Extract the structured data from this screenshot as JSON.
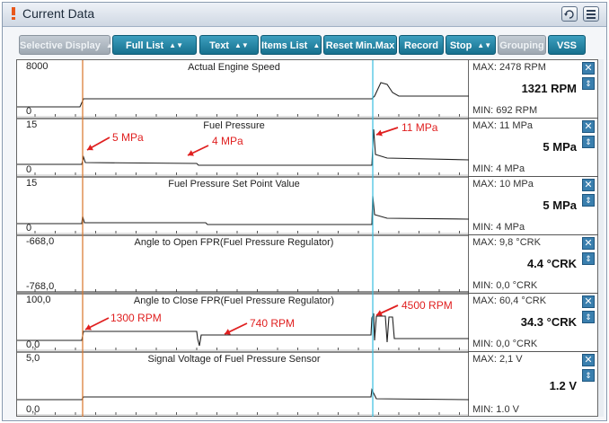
{
  "window": {
    "title": "Current Data"
  },
  "toolbar": {
    "buttons": [
      {
        "label": "Selective Display",
        "dropdown": true,
        "enabled": false
      },
      {
        "label": "Full List",
        "dropdown": true,
        "enabled": true
      },
      {
        "label": "Text",
        "dropdown": true,
        "enabled": true
      },
      {
        "label": "Items List",
        "dropdown": true,
        "enabled": true
      },
      {
        "label": "Reset Min.Max",
        "dropdown": false,
        "enabled": true
      },
      {
        "label": "Record",
        "dropdown": false,
        "enabled": true
      },
      {
        "label": "Stop",
        "dropdown": true,
        "enabled": true
      },
      {
        "label": "Grouping",
        "dropdown": false,
        "enabled": false
      },
      {
        "label": "VSS",
        "dropdown": false,
        "enabled": true
      }
    ]
  },
  "colors": {
    "accent": "#16708e",
    "annotation": "#e02020",
    "cursor_orange": "#d8742a",
    "cursor_cyan": "#39bfe0"
  },
  "panels": [
    {
      "title": "Actual Engine Speed",
      "ymax": "8000",
      "ymin": "0",
      "stat_max": "MAX: 2478 RPM",
      "stat_cur": "1321 RPM",
      "stat_min": "MIN: 692 RPM",
      "annotations": []
    },
    {
      "title": "Fuel Pressure",
      "ymax": "15",
      "ymin": "0",
      "stat_max": "MAX: 11 MPa",
      "stat_cur": "5 MPa",
      "stat_min": "MIN: 4 MPa",
      "annotations": [
        "5 MPa",
        "4 MPa",
        "11 MPa"
      ]
    },
    {
      "title": "Fuel Pressure Set Point Value",
      "ymax": "15",
      "ymin": "0",
      "stat_max": "MAX: 10 MPa",
      "stat_cur": "5 MPa",
      "stat_min": "MIN: 4 MPa",
      "annotations": []
    },
    {
      "title": "Angle to Open FPR(Fuel Pressure Regulator)",
      "ymax": "-668,0",
      "ymin": "-768,0",
      "stat_max": "MAX: 9,8 °CRK",
      "stat_cur": "4.4 °CRK",
      "stat_min": "MIN: 0,0 °CRK",
      "annotations": []
    },
    {
      "title": "Angle to Close FPR(Fuel Pressure Regulator)",
      "ymax": "100,0",
      "ymin": "0,0",
      "stat_max": "MAX: 60,4 °CRK",
      "stat_cur": "34.3 °CRK",
      "stat_min": "MIN: 0,0 °CRK",
      "annotations": [
        "1300 RPM",
        "740 RPM",
        "4500 RPM"
      ]
    },
    {
      "title": "Signal Voltage of Fuel Pressure Sensor",
      "ymax": "5,0",
      "ymin": "0,0",
      "stat_max": "MAX: 2,1 V",
      "stat_cur": "1.2 V",
      "stat_min": "MIN: 1.0 V",
      "annotations": []
    }
  ]
}
